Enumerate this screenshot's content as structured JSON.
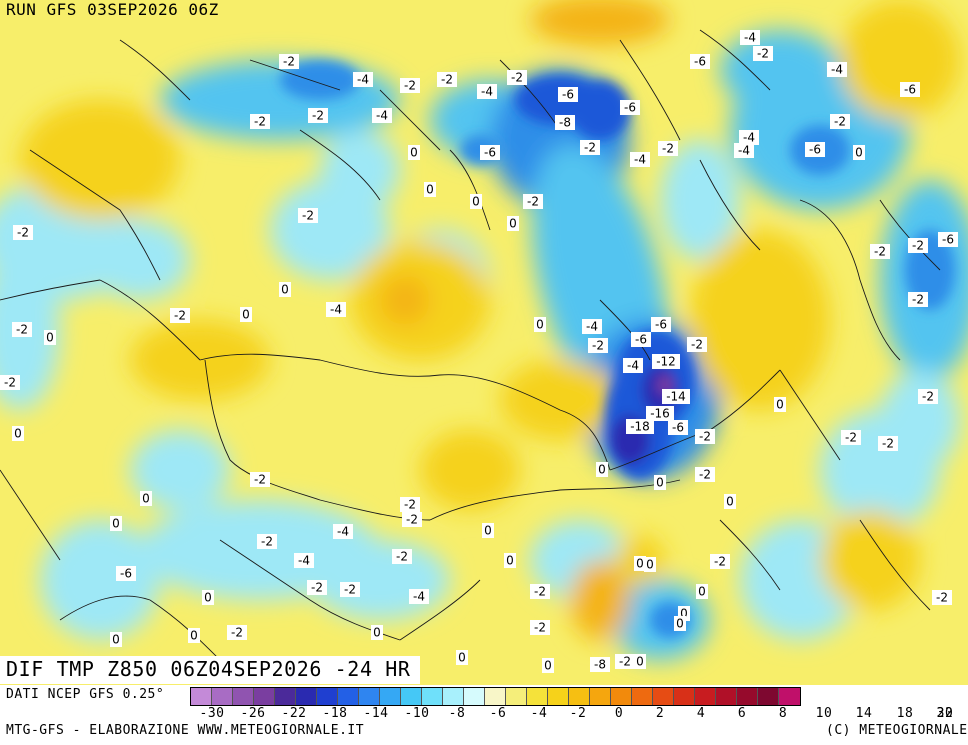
{
  "header": {
    "run_title": "RUN GFS 03SEP2026 06Z",
    "map_title": "DIF TMP Z850 06Z04SEP2026 -24 HR"
  },
  "footer": {
    "source": "DATI NCEP GFS 0.25°",
    "credit": "MTG-GFS - ELABORAZIONE WWW.METEOGIORNALE.IT",
    "copyright": "(C) METEOGIORNALE"
  },
  "legend": {
    "tick_labels": [
      "-30",
      "-26",
      "-22",
      "-18",
      "-14",
      "-10",
      "-8",
      "-6",
      "-4",
      "-2",
      "0",
      "2",
      "4",
      "6",
      "8",
      "10",
      "14",
      "18",
      "22",
      "30"
    ],
    "colors": [
      "#c48ad8",
      "#a86cc4",
      "#9054b0",
      "#7a3ea0",
      "#4b2a9a",
      "#2a2ab0",
      "#1f3fd0",
      "#2360e6",
      "#2f85f0",
      "#35a8f4",
      "#45c8f6",
      "#6fe0fa",
      "#a8f0fc",
      "#d6fbfd",
      "#f8f6c8",
      "#f5ee7a",
      "#f5e23a",
      "#f6d21a",
      "#f6bf12",
      "#f5a60e",
      "#f28a0c",
      "#ee6a10",
      "#e64c14",
      "#d83018",
      "#c81c20",
      "#b01028",
      "#960a2c",
      "#7e0830",
      "#c0106a"
    ]
  },
  "map_values": [
    "-2",
    "-4",
    "-2",
    "-2",
    "-4",
    "-2",
    "-6",
    "-8",
    "-6",
    "-2",
    "-4",
    "-2",
    "0",
    "-6",
    "-2",
    "0",
    "-4",
    "-2",
    "0",
    "-2",
    "-6",
    "0",
    "0",
    "-2",
    "-2",
    "0",
    "-4",
    "-2",
    "0",
    "-2",
    "0",
    "-4",
    "-6",
    "-6",
    "-2",
    "-4",
    "-12",
    "-2",
    "-14",
    "-16",
    "-18",
    "-6",
    "-2",
    "0",
    "0",
    "-2",
    "-2",
    "-2",
    "0",
    "0",
    "-6",
    "-4",
    "-2",
    "-4",
    "-6",
    "-2",
    "-4",
    "-4",
    "-2",
    "-2",
    "-6",
    "0",
    "-2",
    "-2",
    "-2",
    "0",
    "0",
    "0",
    "-2",
    "-2",
    "-2",
    "-4",
    "-4",
    "-2",
    "-2",
    "0",
    "0",
    "0",
    "-2",
    "-2",
    "-2",
    "0",
    "-6",
    "-4",
    "-2",
    "0",
    "0",
    "0",
    "0",
    "-2",
    "0",
    "0",
    "-2",
    "0",
    "0",
    "-2",
    "0",
    "0",
    "-8",
    "-2",
    "0"
  ]
}
